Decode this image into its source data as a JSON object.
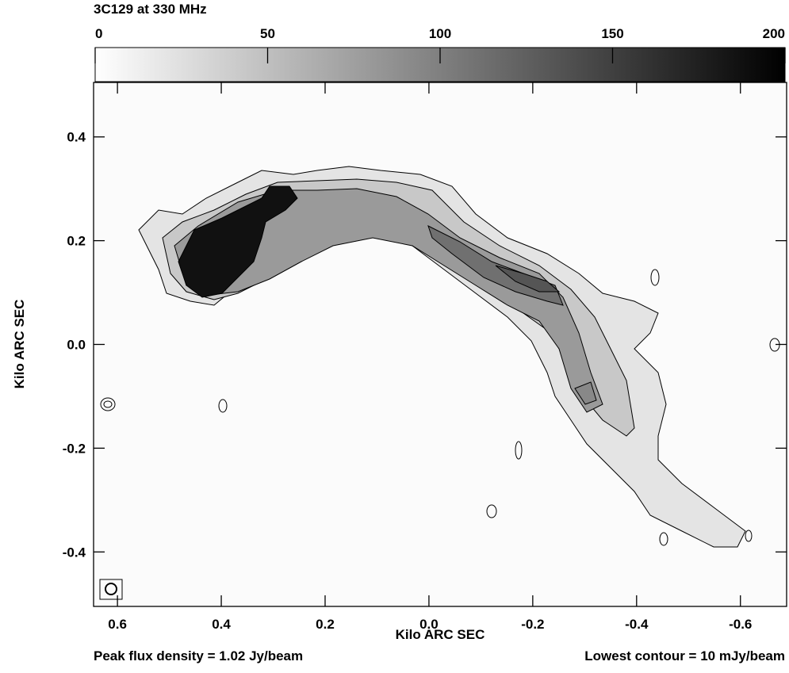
{
  "chart_data": {
    "type": "image",
    "title": "3C129 at 330 MHz",
    "xlabel": "Kilo ARC SEC",
    "ylabel": "Kilo ARC SEC",
    "xlim": [
      0.646,
      -0.689
    ],
    "ylim": [
      -0.505,
      0.505
    ],
    "xticks": [
      0.6,
      0.4,
      0.2,
      {
        "value": 0,
        "label": "0.0"
      },
      -0.2,
      -0.4,
      -0.6
    ],
    "yticks": [
      0.4,
      0.2,
      {
        "value": 0,
        "label": "0.0"
      },
      -0.2,
      -0.4
    ],
    "colorbar": {
      "lim": [
        0,
        200
      ],
      "ticks": [
        0,
        50,
        100,
        150,
        200
      ]
    },
    "annotations": [
      "Peak flux density  = 1.02 Jy/beam",
      "Lowest contour = 10 mJy/beam"
    ]
  }
}
